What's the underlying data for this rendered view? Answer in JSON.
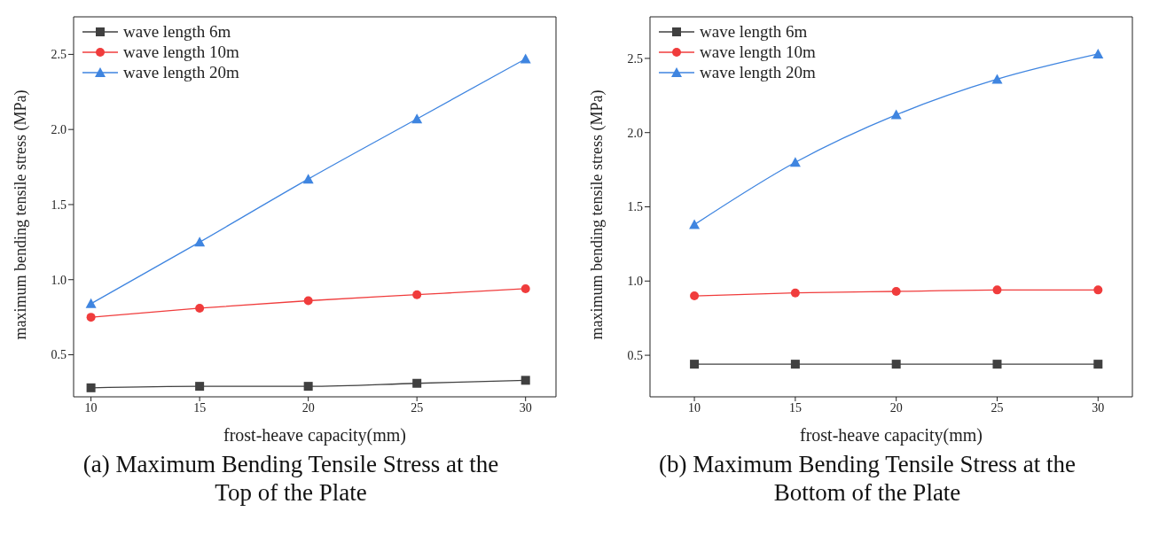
{
  "chart_data": [
    {
      "type": "line",
      "title": "(a) Maximum Bending Tensile Stress at the Top of the Plate",
      "xlabel": "frost-heave capacity(mm)",
      "ylabel": "maximum bending tensile stress (MPa)",
      "x": [
        10,
        15,
        20,
        25,
        30
      ],
      "xlim": [
        9.2,
        31.4
      ],
      "xticks": [
        10,
        15,
        20,
        25,
        30
      ],
      "ylim": [
        0.22,
        2.75
      ],
      "yticks": [
        {
          "value": 0.5,
          "label": "0.5"
        },
        {
          "value": 1,
          "label": "1.0"
        },
        {
          "value": 1.5,
          "label": "1.5"
        },
        {
          "value": 2,
          "label": "2.0"
        },
        {
          "value": 2.5,
          "label": "2.5"
        }
      ],
      "legend": "top left",
      "line_style": "solid",
      "series": [
        {
          "name": "wave length 6m",
          "color": "#404040",
          "marker": "square",
          "values": [
            0.28,
            0.29,
            0.29,
            0.31,
            0.33
          ]
        },
        {
          "name": "wave length 10m",
          "color": "#f03c3c",
          "marker": "circle",
          "values": [
            0.75,
            0.81,
            0.86,
            0.9,
            0.94
          ]
        },
        {
          "name": "wave length 20m",
          "color": "#3f85e0",
          "marker": "triangle",
          "values": [
            0.84,
            1.25,
            1.67,
            2.07,
            2.47
          ]
        }
      ]
    },
    {
      "type": "line",
      "title": "(b) Maximum Bending Tensile Stress at the Bottom of the Plate",
      "xlabel": "frost-heave capacity(mm)",
      "ylabel": "maximum bending tensile stress (MPa)",
      "x": [
        10,
        15,
        20,
        25,
        30
      ],
      "xlim": [
        7.8,
        31.7
      ],
      "xticks": [
        10,
        15,
        20,
        25,
        30
      ],
      "ylim": [
        0.22,
        2.78
      ],
      "yticks": [
        {
          "value": 0.5,
          "label": "0.5"
        },
        {
          "value": 1,
          "label": "1.0"
        },
        {
          "value": 1.5,
          "label": "1.5"
        },
        {
          "value": 2,
          "label": "2.0"
        },
        {
          "value": 2.5,
          "label": "2.5"
        }
      ],
      "legend": "top left",
      "line_style": "solid",
      "series": [
        {
          "name": "wave length 6m",
          "color": "#404040",
          "marker": "square",
          "values": [
            0.44,
            0.44,
            0.44,
            0.44,
            0.44
          ]
        },
        {
          "name": "wave length 10m",
          "color": "#f03c3c",
          "marker": "circle",
          "values": [
            0.9,
            0.92,
            0.93,
            0.94,
            0.94
          ]
        },
        {
          "name": "wave length 20m",
          "color": "#3f85e0",
          "marker": "triangle",
          "values": [
            1.38,
            1.8,
            2.12,
            2.36,
            2.53
          ]
        }
      ]
    }
  ]
}
